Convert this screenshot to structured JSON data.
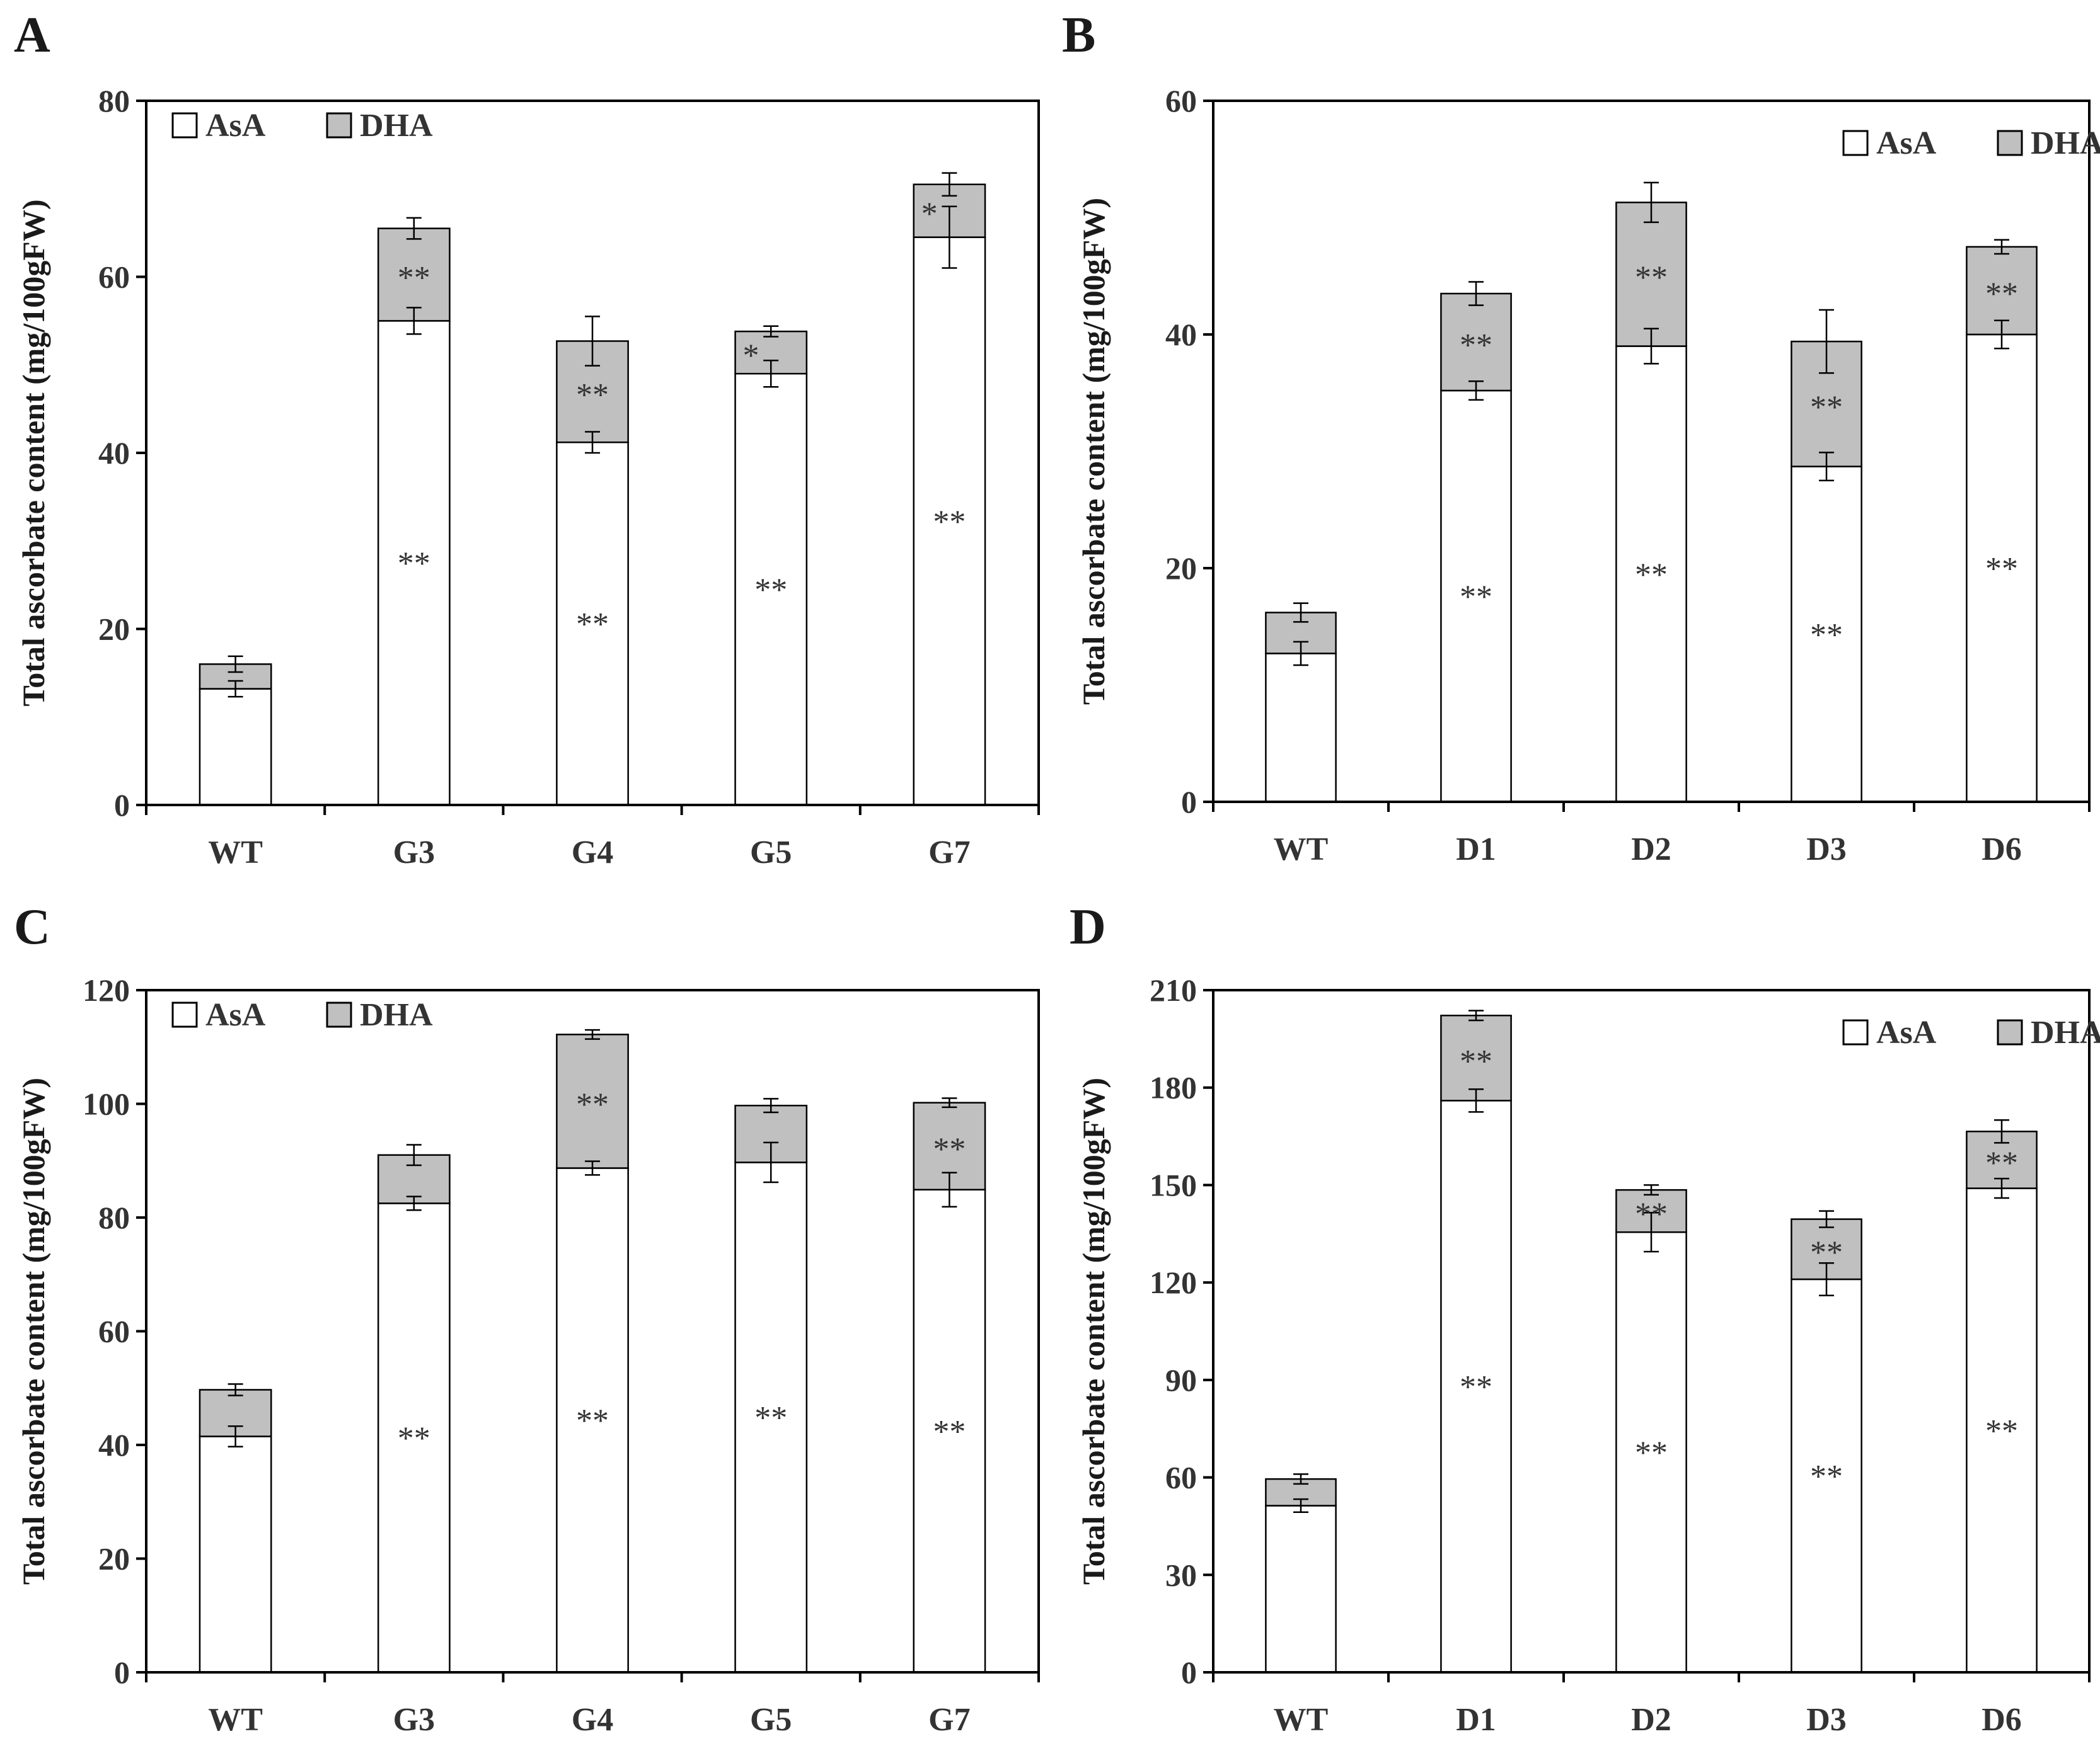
{
  "chart_data": [
    {
      "panel": "A",
      "type": "bar",
      "stacked": true,
      "categories": [
        "WT",
        "G3",
        "G4",
        "G5",
        "G7"
      ],
      "series": [
        {
          "name": "AsA",
          "values": [
            13.2,
            55.0,
            41.2,
            49.0,
            64.5
          ],
          "errors": [
            0.9,
            1.5,
            1.2,
            1.5,
            3.5
          ],
          "annotations": [
            "",
            "**",
            "**",
            "**",
            "**"
          ]
        },
        {
          "name": "DHA",
          "values": [
            2.8,
            10.5,
            11.5,
            4.8,
            6.0
          ],
          "errors": [
            0.9,
            1.2,
            2.8,
            0.6,
            1.3
          ],
          "annotations": [
            "",
            "**",
            "**",
            "*",
            "*"
          ]
        }
      ],
      "legend": [
        "AsA",
        "DHA"
      ],
      "legend_position": "top-left",
      "ylabel": "Total ascorbate content (mg/100gFW)",
      "ylim": [
        0,
        80
      ],
      "yticks": [
        0,
        20,
        40,
        60,
        80
      ]
    },
    {
      "panel": "B",
      "type": "bar",
      "stacked": true,
      "categories": [
        "WT",
        "D1",
        "D2",
        "D3",
        "D6"
      ],
      "series": [
        {
          "name": "AsA",
          "values": [
            12.7,
            35.2,
            39.0,
            28.7,
            40.0
          ],
          "errors": [
            1.0,
            0.8,
            1.5,
            1.2,
            1.2
          ],
          "annotations": [
            "",
            "**",
            "**",
            "**",
            "**"
          ]
        },
        {
          "name": "DHA",
          "values": [
            3.5,
            8.3,
            12.3,
            10.7,
            7.5
          ],
          "errors": [
            0.8,
            1.0,
            1.7,
            2.7,
            0.6
          ],
          "annotations": [
            "",
            "**",
            "**",
            "**",
            "**"
          ]
        }
      ],
      "legend": [
        "AsA",
        "DHA"
      ],
      "legend_position": "top-right",
      "ylabel": "Total ascorbate content (mg/100gFW)",
      "ylim": [
        0,
        60
      ],
      "yticks": [
        0,
        20,
        40,
        60
      ]
    },
    {
      "panel": "C",
      "type": "bar",
      "stacked": true,
      "categories": [
        "WT",
        "G3",
        "G4",
        "G5",
        "G7"
      ],
      "series": [
        {
          "name": "AsA",
          "values": [
            41.5,
            82.5,
            88.7,
            89.7,
            84.9
          ],
          "errors": [
            1.8,
            1.2,
            1.2,
            3.5,
            3.0
          ],
          "annotations": [
            "",
            "**",
            "**",
            "**",
            "**"
          ]
        },
        {
          "name": "DHA",
          "values": [
            8.2,
            8.5,
            23.5,
            10.0,
            15.3
          ],
          "errors": [
            1.0,
            1.8,
            0.8,
            1.2,
            0.8
          ],
          "annotations": [
            "",
            "",
            "**",
            "",
            "**"
          ]
        }
      ],
      "legend": [
        "AsA",
        "DHA"
      ],
      "legend_position": "top-left",
      "ylabel": "Total ascorbate content (mg/100gFW)",
      "ylim": [
        0,
        120
      ],
      "yticks": [
        0,
        20,
        40,
        60,
        80,
        100,
        120
      ]
    },
    {
      "panel": "D",
      "type": "bar",
      "stacked": true,
      "categories": [
        "WT",
        "D1",
        "D2",
        "D3",
        "D6"
      ],
      "series": [
        {
          "name": "AsA",
          "values": [
            51.3,
            176.0,
            135.5,
            121.0,
            149.0
          ],
          "errors": [
            2.0,
            3.5,
            6.0,
            5.0,
            3.0
          ],
          "annotations": [
            "",
            "**",
            "**",
            "**",
            "**"
          ]
        },
        {
          "name": "DHA",
          "values": [
            8.2,
            26.2,
            13.0,
            18.5,
            17.5
          ],
          "errors": [
            1.5,
            1.5,
            1.5,
            2.5,
            3.5
          ],
          "annotations": [
            "",
            "**",
            "**",
            "**",
            "**"
          ]
        }
      ],
      "legend": [
        "AsA",
        "DHA"
      ],
      "legend_position": "top-right",
      "ylabel": "Total ascorbate content (mg/100gFW)",
      "ylim": [
        0,
        210
      ],
      "yticks": [
        0,
        30,
        60,
        90,
        120,
        150,
        180,
        210
      ]
    }
  ],
  "colors": {
    "asa_fill": "#ffffff",
    "dha_fill": "#c0c0c0",
    "axis": "#000000",
    "text": "#333333"
  }
}
